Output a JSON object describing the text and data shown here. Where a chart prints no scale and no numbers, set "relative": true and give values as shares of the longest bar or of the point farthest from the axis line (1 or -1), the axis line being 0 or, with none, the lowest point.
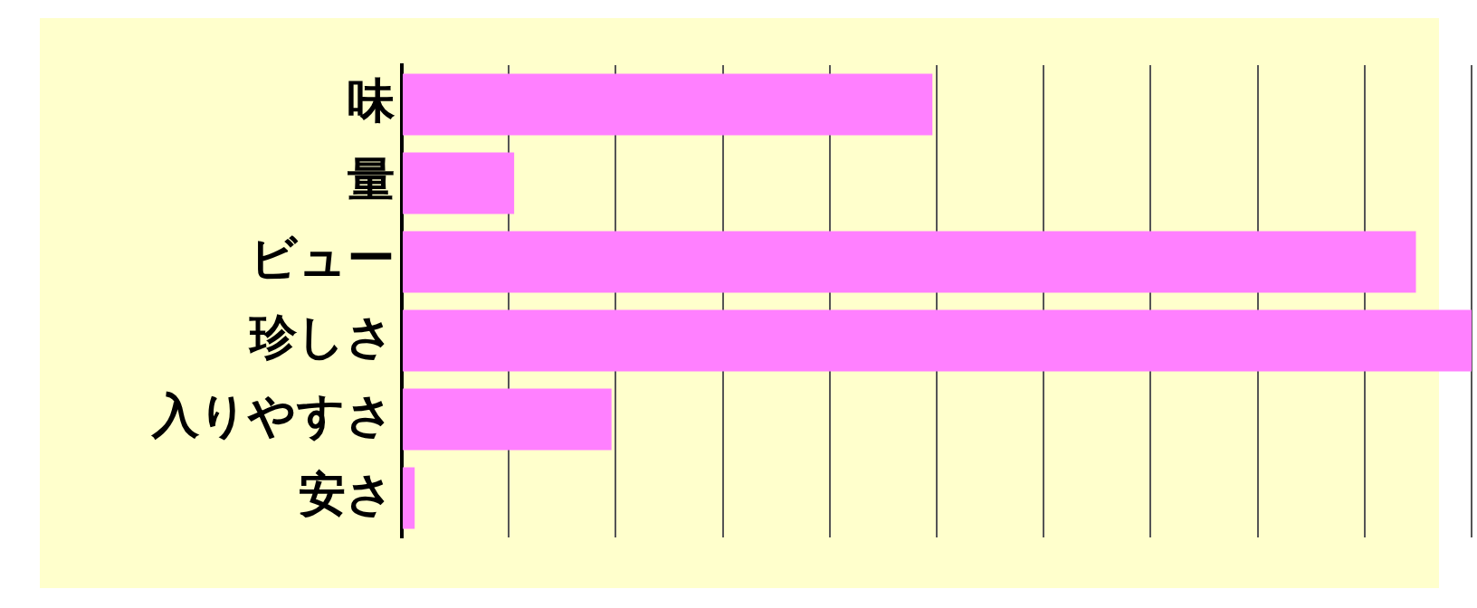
{
  "chart_data": {
    "type": "bar",
    "orientation": "horizontal",
    "relative": true,
    "grid": "x",
    "legend": false,
    "categories": [
      "味",
      "量",
      "ビュー",
      "珍しさ",
      "入りやすさ",
      "安さ"
    ],
    "values": [
      0.496,
      0.105,
      0.948,
      1,
      0.196,
      0.012
    ],
    "color": "#ff80ff"
  }
}
